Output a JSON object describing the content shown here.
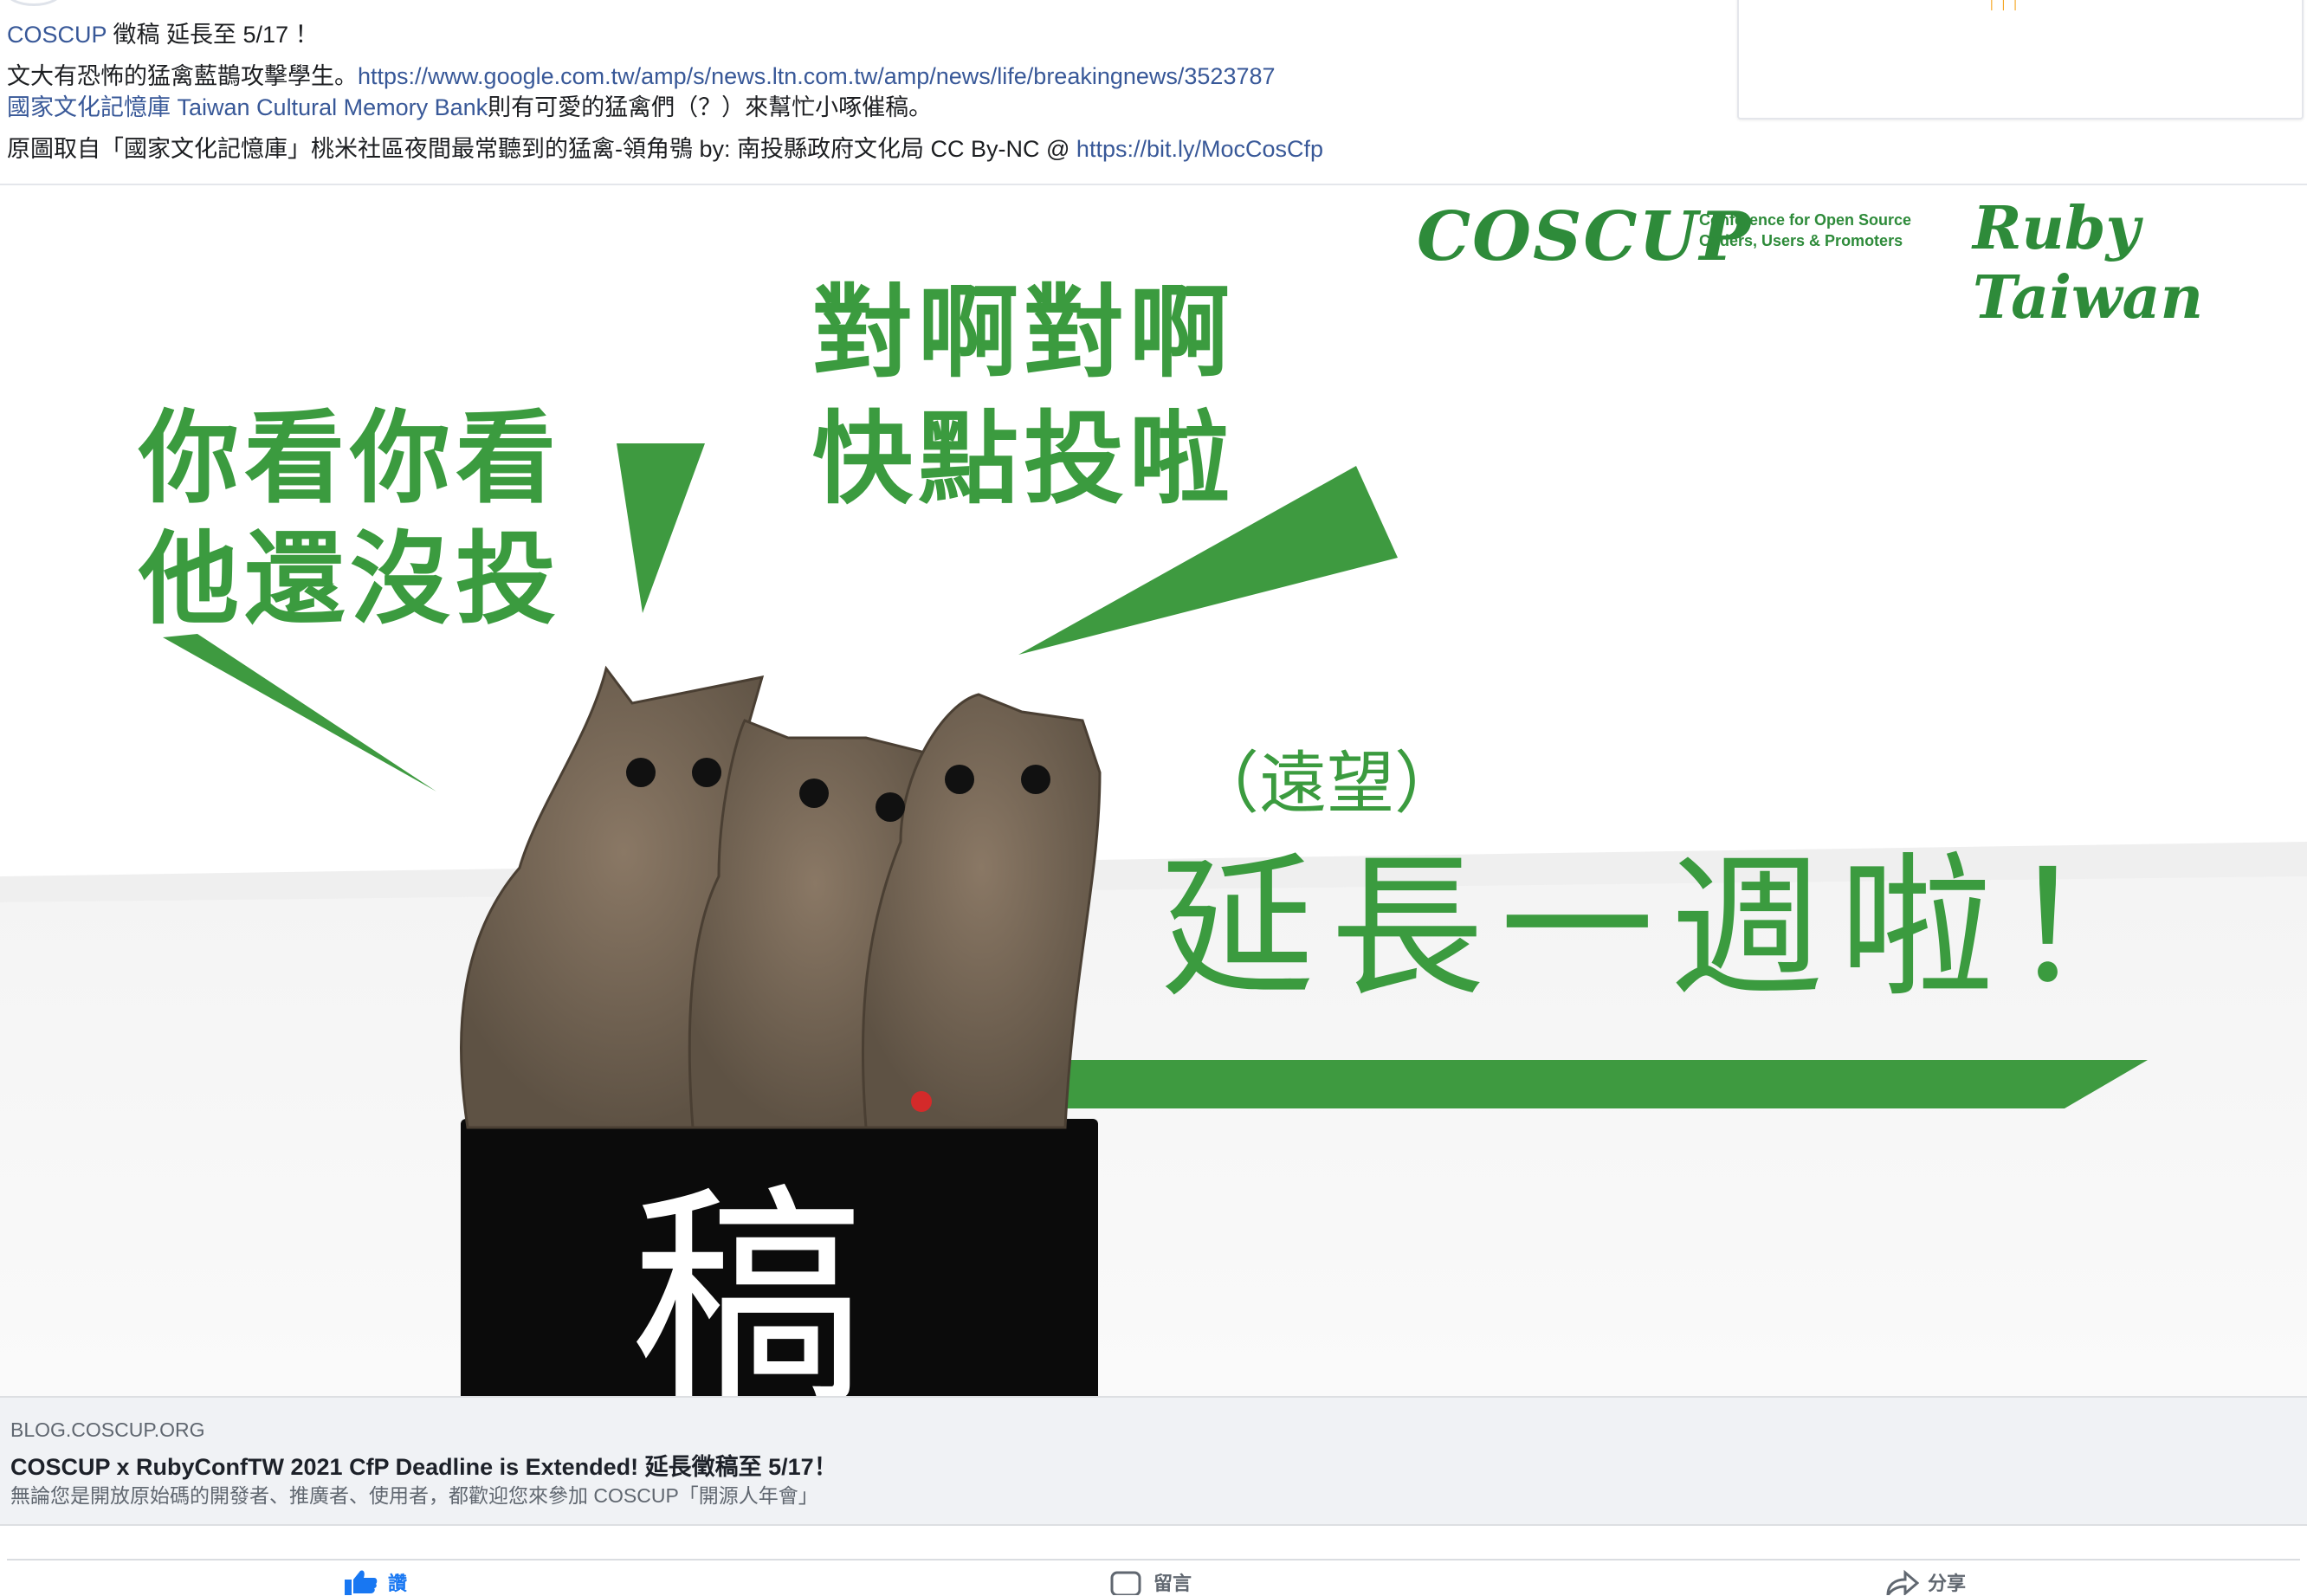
{
  "post": {
    "line1_link": "COSCUP",
    "line1_text": " 徵稿 延長至 5/17 ！",
    "line2_text": "文大有恐怖的猛禽藍鵲攻擊學生。",
    "line2_link": "https://www.google.com.tw/amp/s/news.ltn.com.tw/amp/news/life/breakingnews/3523787",
    "line3_link": "國家文化記憶庫 Taiwan Cultural Memory Bank",
    "line3_text": "則有可愛的猛禽們（？）來幫忙小啄催稿。",
    "line4_text": "原圖取自「國家文化記憶庫」桃米社區夜間最常聽到的猛禽-領角鴞 by: 南投縣政府文化局 CC By-NC @ ",
    "line4_link": "https://bit.ly/MocCosCfp"
  },
  "image": {
    "logo_coscup": "COSCUP",
    "logo_sub1": "Conference for Open Source",
    "logo_sub2": "Coders, Users & Promoters",
    "logo_ruby": "Ruby Taiwan",
    "bubble1_line1": "你看你看",
    "bubble1_line2": "他還沒投",
    "bubble2_line1": "對啊對啊",
    "bubble2_line2": "快點投啦",
    "bubble3": "（遠望）",
    "headline": "延長一週啦！",
    "box_char": "稿",
    "green": "#3b9b3f"
  },
  "link_card": {
    "domain": "BLOG.COSCUP.ORG",
    "title": "COSCUP x RubyConfTW 2021 CfP Deadline is Extended! 延長徵稿至 5/17！",
    "description": "無論您是開放原始碼的開發者、推廣者、使用者，都歡迎您來參加 COSCUP「開源人年會」"
  },
  "actions": {
    "like": "讚",
    "comment": "留言",
    "share": "分享",
    "like_icon": "thumbs-up-icon",
    "comment_icon": "comment-icon",
    "share_icon": "share-icon"
  }
}
